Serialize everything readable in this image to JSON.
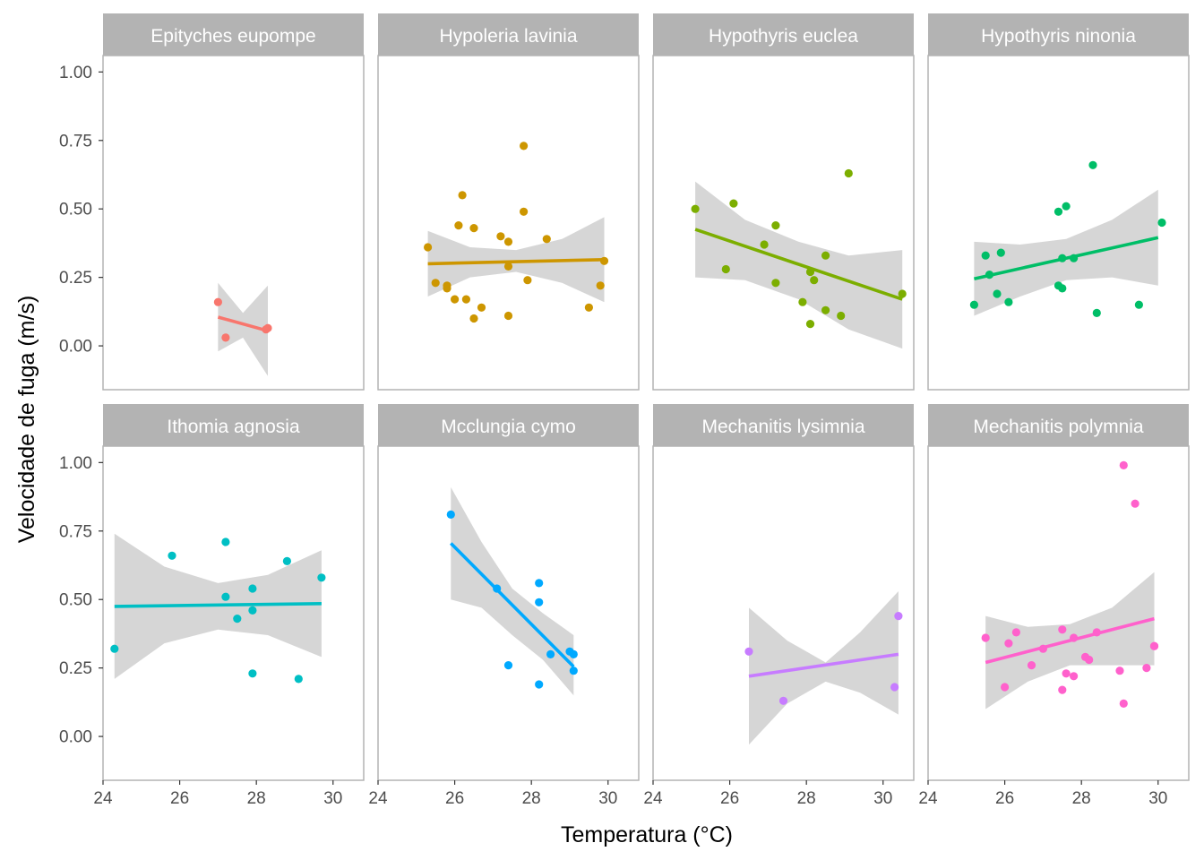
{
  "chart_data": {
    "type": "scatter",
    "xlabel": "Temperatura (°C)",
    "ylabel": "Velocidade de fuga (m/s)",
    "xlim": [
      24,
      30.8
    ],
    "ylim": [
      -0.16,
      1.06
    ],
    "xticks": [
      24,
      26,
      28,
      30
    ],
    "yticks": [
      0.0,
      0.25,
      0.5,
      0.75,
      1.0
    ],
    "xtick_labels": [
      "24",
      "26",
      "28",
      "30"
    ],
    "ytick_labels": [
      "0.00",
      "0.25",
      "0.50",
      "0.75",
      "1.00"
    ],
    "grid": false,
    "legend": "none",
    "layout": "facet grid 2 rows x 4 columns",
    "panels": [
      {
        "name": "Epityches eupompe",
        "color": "#F8766D",
        "points": [
          [
            27.0,
            0.16
          ],
          [
            27.2,
            0.03
          ],
          [
            28.25,
            0.06
          ],
          [
            28.3,
            0.065
          ]
        ],
        "fit": {
          "x": [
            27.0,
            28.3
          ],
          "y": [
            0.105,
            0.055
          ]
        },
        "band": {
          "x": [
            27.0,
            27.65,
            28.3
          ],
          "lower": [
            -0.02,
            0.03,
            -0.11
          ],
          "upper": [
            0.23,
            0.12,
            0.22
          ]
        }
      },
      {
        "name": "Hypoleria lavinia",
        "color": "#CD9600",
        "points": [
          [
            25.3,
            0.36
          ],
          [
            25.5,
            0.23
          ],
          [
            25.8,
            0.22
          ],
          [
            25.8,
            0.21
          ],
          [
            26.0,
            0.17
          ],
          [
            26.1,
            0.44
          ],
          [
            26.2,
            0.55
          ],
          [
            26.3,
            0.17
          ],
          [
            26.5,
            0.1
          ],
          [
            26.5,
            0.43
          ],
          [
            26.7,
            0.14
          ],
          [
            27.2,
            0.4
          ],
          [
            27.4,
            0.38
          ],
          [
            27.4,
            0.29
          ],
          [
            27.4,
            0.11
          ],
          [
            27.8,
            0.73
          ],
          [
            27.8,
            0.49
          ],
          [
            27.9,
            0.24
          ],
          [
            28.4,
            0.39
          ],
          [
            29.5,
            0.14
          ],
          [
            29.8,
            0.22
          ],
          [
            29.9,
            0.31
          ]
        ],
        "fit": {
          "x": [
            25.3,
            29.9
          ],
          "y": [
            0.3,
            0.315
          ]
        },
        "band": {
          "x": [
            25.3,
            26.4,
            27.6,
            28.8,
            29.9
          ],
          "lower": [
            0.18,
            0.25,
            0.27,
            0.23,
            0.16
          ],
          "upper": [
            0.42,
            0.36,
            0.35,
            0.39,
            0.47
          ]
        }
      },
      {
        "name": "Hypothyris euclea",
        "color": "#7CAE00",
        "points": [
          [
            25.1,
            0.5
          ],
          [
            25.9,
            0.28
          ],
          [
            26.1,
            0.52
          ],
          [
            26.9,
            0.37
          ],
          [
            27.2,
            0.44
          ],
          [
            27.2,
            0.23
          ],
          [
            27.9,
            0.16
          ],
          [
            28.1,
            0.27
          ],
          [
            28.1,
            0.08
          ],
          [
            28.2,
            0.24
          ],
          [
            28.5,
            0.33
          ],
          [
            28.5,
            0.13
          ],
          [
            28.9,
            0.11
          ],
          [
            29.1,
            0.63
          ],
          [
            30.5,
            0.19
          ]
        ],
        "fit": {
          "x": [
            25.1,
            30.5
          ],
          "y": [
            0.425,
            0.17
          ]
        },
        "band": {
          "x": [
            25.1,
            26.4,
            27.8,
            29.1,
            30.5
          ],
          "lower": [
            0.25,
            0.24,
            0.17,
            0.06,
            -0.01
          ],
          "upper": [
            0.6,
            0.46,
            0.38,
            0.33,
            0.35
          ]
        }
      },
      {
        "name": "Hypothyris ninonia",
        "color": "#00BE67",
        "points": [
          [
            25.2,
            0.15
          ],
          [
            25.5,
            0.33
          ],
          [
            25.6,
            0.26
          ],
          [
            25.8,
            0.19
          ],
          [
            25.9,
            0.34
          ],
          [
            26.1,
            0.16
          ],
          [
            27.4,
            0.22
          ],
          [
            27.4,
            0.49
          ],
          [
            27.5,
            0.21
          ],
          [
            27.5,
            0.32
          ],
          [
            27.6,
            0.51
          ],
          [
            27.8,
            0.32
          ],
          [
            28.3,
            0.66
          ],
          [
            28.4,
            0.12
          ],
          [
            29.5,
            0.15
          ],
          [
            30.1,
            0.45
          ]
        ],
        "fit": {
          "x": [
            25.2,
            30.0
          ],
          "y": [
            0.245,
            0.395
          ]
        },
        "band": {
          "x": [
            25.2,
            26.4,
            27.6,
            28.8,
            30.0
          ],
          "lower": [
            0.11,
            0.18,
            0.24,
            0.25,
            0.22
          ],
          "upper": [
            0.38,
            0.37,
            0.39,
            0.46,
            0.57
          ]
        }
      },
      {
        "name": "Ithomia agnosia",
        "color": "#00BFC4",
        "points": [
          [
            24.3,
            0.32
          ],
          [
            25.8,
            0.66
          ],
          [
            27.2,
            0.71
          ],
          [
            27.2,
            0.51
          ],
          [
            27.5,
            0.43
          ],
          [
            27.9,
            0.54
          ],
          [
            27.9,
            0.46
          ],
          [
            27.9,
            0.23
          ],
          [
            28.8,
            0.64
          ],
          [
            29.1,
            0.21
          ],
          [
            29.7,
            0.58
          ]
        ],
        "fit": {
          "x": [
            24.3,
            29.7
          ],
          "y": [
            0.475,
            0.485
          ]
        },
        "band": {
          "x": [
            24.3,
            25.6,
            27.0,
            28.3,
            29.7
          ],
          "lower": [
            0.21,
            0.34,
            0.39,
            0.37,
            0.29
          ],
          "upper": [
            0.74,
            0.62,
            0.56,
            0.59,
            0.68
          ]
        }
      },
      {
        "name": "Mcclungia cymo",
        "color": "#00A9FF",
        "points": [
          [
            25.9,
            0.81
          ],
          [
            27.1,
            0.54
          ],
          [
            27.4,
            0.26
          ],
          [
            28.2,
            0.56
          ],
          [
            28.2,
            0.49
          ],
          [
            28.2,
            0.19
          ],
          [
            28.5,
            0.3
          ],
          [
            29.0,
            0.31
          ],
          [
            29.1,
            0.3
          ],
          [
            29.1,
            0.24
          ]
        ],
        "fit": {
          "x": [
            25.9,
            29.1
          ],
          "y": [
            0.705,
            0.255
          ]
        },
        "band": {
          "x": [
            25.9,
            26.7,
            27.5,
            28.3,
            29.1
          ],
          "lower": [
            0.5,
            0.47,
            0.37,
            0.28,
            0.15
          ],
          "upper": [
            0.91,
            0.71,
            0.54,
            0.45,
            0.37
          ]
        }
      },
      {
        "name": "Mechanitis lysimnia",
        "color": "#C77CFF",
        "points": [
          [
            26.5,
            0.31
          ],
          [
            27.4,
            0.13
          ],
          [
            30.3,
            0.18
          ],
          [
            30.4,
            0.44
          ]
        ],
        "fit": {
          "x": [
            26.5,
            30.4
          ],
          "y": [
            0.22,
            0.3
          ]
        },
        "band": {
          "x": [
            26.5,
            27.5,
            28.5,
            29.4,
            30.4
          ],
          "lower": [
            -0.03,
            0.12,
            0.2,
            0.16,
            0.08
          ],
          "upper": [
            0.47,
            0.35,
            0.27,
            0.38,
            0.53
          ]
        }
      },
      {
        "name": "Mechanitis polymnia",
        "color": "#FF61CC",
        "points": [
          [
            25.5,
            0.36
          ],
          [
            26.0,
            0.18
          ],
          [
            26.1,
            0.34
          ],
          [
            26.3,
            0.38
          ],
          [
            26.7,
            0.26
          ],
          [
            27.0,
            0.32
          ],
          [
            27.5,
            0.17
          ],
          [
            27.5,
            0.39
          ],
          [
            27.6,
            0.23
          ],
          [
            27.8,
            0.22
          ],
          [
            27.8,
            0.36
          ],
          [
            28.1,
            0.29
          ],
          [
            28.2,
            0.28
          ],
          [
            28.4,
            0.38
          ],
          [
            29.0,
            0.24
          ],
          [
            29.1,
            0.12
          ],
          [
            29.1,
            0.99
          ],
          [
            29.4,
            0.85
          ],
          [
            29.7,
            0.25
          ],
          [
            29.9,
            0.33
          ],
          [
            29.9,
            0.33
          ]
        ],
        "fit": {
          "x": [
            25.5,
            29.9
          ],
          "y": [
            0.27,
            0.43
          ]
        },
        "band": {
          "x": [
            25.5,
            26.6,
            27.7,
            28.8,
            29.9
          ],
          "lower": [
            0.1,
            0.2,
            0.26,
            0.26,
            0.26
          ],
          "upper": [
            0.44,
            0.4,
            0.41,
            0.47,
            0.6
          ]
        }
      }
    ]
  }
}
